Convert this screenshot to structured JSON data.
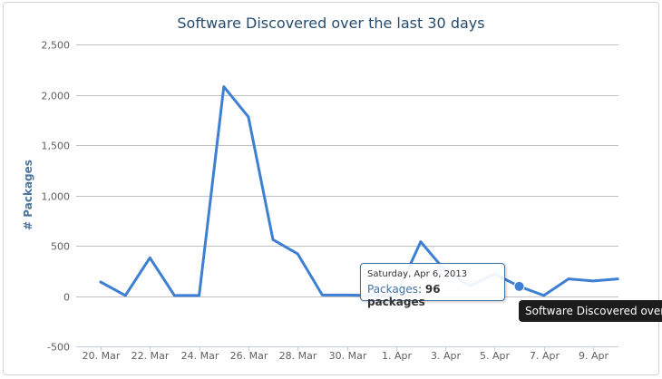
{
  "chart_data": {
    "type": "line",
    "title": "Software Discovered over the last 30 days",
    "xlabel": "",
    "ylabel": "# Packages",
    "ylim": [
      -500,
      2500
    ],
    "yticks": [
      "-500",
      "0",
      "500",
      "1,000",
      "1,500",
      "2,000",
      "2,500"
    ],
    "ytick_values": [
      -500,
      0,
      500,
      1000,
      1500,
      2000,
      2500
    ],
    "x_tick_labels": [
      "20. Mar",
      "22. Mar",
      "24. Mar",
      "26. Mar",
      "28. Mar",
      "30. Mar",
      "1. Apr",
      "3. Apr",
      "5. Apr",
      "7. Apr",
      "9. Apr"
    ],
    "x_tick_dates": [
      "2013-03-20",
      "2013-03-22",
      "2013-03-24",
      "2013-03-26",
      "2013-03-28",
      "2013-03-30",
      "2013-04-01",
      "2013-04-03",
      "2013-04-05",
      "2013-04-07",
      "2013-04-09"
    ],
    "grid": true,
    "series": [
      {
        "name": "Packages",
        "color": "#3d7fd2",
        "x": [
          "2013-03-20",
          "2013-03-21",
          "2013-03-22",
          "2013-03-23",
          "2013-03-24",
          "2013-03-25",
          "2013-03-26",
          "2013-03-27",
          "2013-03-28",
          "2013-03-29",
          "2013-03-30",
          "2013-03-31",
          "2013-04-01",
          "2013-04-02",
          "2013-04-03",
          "2013-04-04",
          "2013-04-05",
          "2013-04-06",
          "2013-04-07",
          "2013-04-08",
          "2013-04-09",
          "2013-04-10"
        ],
        "y": [
          140,
          5,
          380,
          5,
          5,
          2080,
          1780,
          560,
          420,
          10,
          10,
          5,
          5,
          540,
          250,
          100,
          220,
          96,
          5,
          170,
          150,
          170
        ]
      }
    ],
    "tooltip": {
      "date": "Saturday, Apr 6, 2013",
      "series": "Packages",
      "value_text": "96 packages",
      "point_index": 17
    }
  },
  "hover_label": "Software Discovered over"
}
